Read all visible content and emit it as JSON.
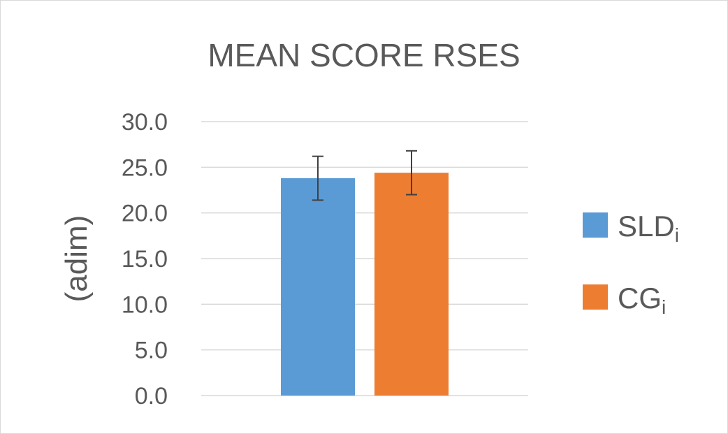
{
  "chart_data": {
    "type": "bar",
    "title": "MEAN SCORE RSES",
    "ylabel": "(adim)",
    "xlabel": "",
    "ylim": [
      0,
      30
    ],
    "yticks": [
      "0.0",
      "5.0",
      "10.0",
      "15.0",
      "20.0",
      "25.0",
      "30.0"
    ],
    "grid": true,
    "legend_position": "right",
    "series": [
      {
        "name": "SLD",
        "subscript": "i",
        "value": 23.8,
        "error": 2.4,
        "color": "#5b9bd5"
      },
      {
        "name": "CG",
        "subscript": "i",
        "value": 24.4,
        "error": 2.4,
        "color": "#ed7d31"
      }
    ]
  }
}
